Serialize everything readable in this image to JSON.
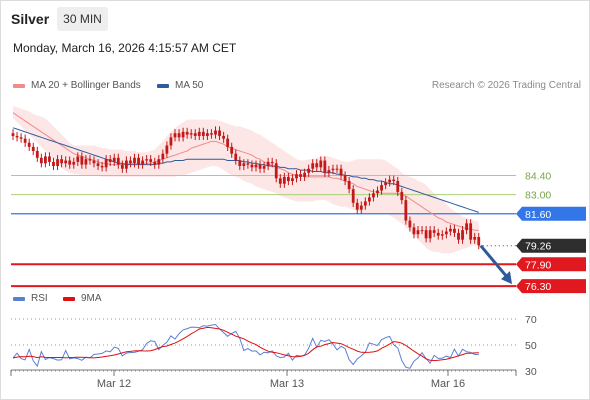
{
  "header": {
    "symbol": "Silver",
    "timeframe": "30 MIN",
    "datetime": "Monday, March 16, 2026 4:15:57 AM CET"
  },
  "legend": {
    "ma20": "MA 20 + Bollinger Bands",
    "ma50": "MA 50",
    "rsi": "RSI",
    "ma9": "9MA"
  },
  "credit": "Research © 2026 Trading Central",
  "colors": {
    "ma20": "#f08b8b",
    "ma50": "#2f5c9e",
    "band": "#fde6e6",
    "rsi": "#5a7fd6",
    "ma9": "#e01010",
    "pivot": "#3376e8",
    "support": "#e0181f",
    "resistance": "#a9cf7a",
    "candle": "#c41818",
    "arrow": "#2c5a9a"
  },
  "chart_data": [
    {
      "type": "candlestick",
      "x_ticks": [
        "Mar 12",
        "Mar 13",
        "Mar 16"
      ],
      "y_range": [
        75.65,
        90.3
      ],
      "levels": [
        {
          "label": "84.40",
          "value": 84.4,
          "kind": "resistance"
        },
        {
          "label": "83.00",
          "value": 83.0,
          "kind": "resistance"
        },
        {
          "label": "81.60",
          "value": 81.6,
          "kind": "pivot"
        },
        {
          "label": "79.26",
          "value": 79.26,
          "kind": "last"
        },
        {
          "label": "77.90",
          "value": 77.9,
          "kind": "support"
        },
        {
          "label": "76.30",
          "value": 76.3,
          "kind": "support"
        }
      ],
      "close": [
        87.3,
        87.2,
        87.1,
        86.8,
        86.5,
        86.2,
        85.7,
        85.3,
        85.8,
        85.4,
        85.1,
        85.6,
        85.3,
        85.5,
        85.2,
        85.4,
        85.8,
        85.2,
        85.6,
        85.5,
        85.3,
        85.1,
        85.0,
        85.6,
        85.4,
        85.7,
        85.2,
        84.9,
        85.5,
        85.3,
        85.7,
        85.2,
        85.5,
        85.6,
        85.4,
        85.2,
        85.6,
        86.0,
        86.6,
        87.2,
        87.5,
        87.2,
        87.6,
        87.4,
        87.5,
        87.3,
        87.6,
        87.3,
        87.5,
        87.4,
        87.7,
        87.3,
        87.1,
        86.5,
        86.0,
        85.5,
        85.1,
        85.3,
        85.2,
        85.0,
        85.2,
        84.9,
        85.1,
        85.4,
        85.3,
        84.2,
        83.8,
        84.3,
        84.0,
        84.2,
        84.5,
        84.3,
        84.6,
        84.9,
        85.3,
        85.0,
        85.5,
        84.6,
        84.8,
        84.9,
        84.9,
        84.4,
        84.0,
        83.4,
        82.4,
        81.9,
        82.2,
        82.5,
        82.8,
        83.1,
        83.3,
        83.7,
        83.9,
        84.1,
        84.0,
        83.2,
        82.6,
        81.1,
        80.6,
        80.1,
        80.4,
        80.4,
        79.8,
        80.4,
        80.2,
        80.0,
        80.1,
        80.3,
        80.5,
        80.2,
        79.7,
        80.4,
        80.9,
        79.7,
        79.9,
        79.3
      ],
      "ma20": [
        89.0,
        88.8,
        88.6,
        88.4,
        88.2,
        88.0,
        87.8,
        87.6,
        87.4,
        87.2,
        87.0,
        86.8,
        86.6,
        86.4,
        86.2,
        86.0,
        85.9,
        85.8,
        85.7,
        85.6,
        85.5,
        85.4,
        85.3,
        85.3,
        85.2,
        85.2,
        85.2,
        85.2,
        85.2,
        85.3,
        85.3,
        85.3,
        85.3,
        85.3,
        85.3,
        85.4,
        85.5,
        85.6,
        85.7,
        85.8,
        85.9,
        86.0,
        86.1,
        86.2,
        86.4,
        86.5,
        86.6,
        86.7,
        86.8,
        86.9,
        86.9,
        86.8,
        86.7,
        86.5,
        86.4,
        86.3,
        86.2,
        86.1,
        86.0,
        85.9,
        85.7,
        85.6,
        85.4,
        85.3,
        85.1,
        85.0,
        84.9,
        84.8,
        84.6,
        84.5,
        84.4,
        84.4,
        84.3,
        84.3,
        84.3,
        84.3,
        84.3,
        84.3,
        84.3,
        84.2,
        84.2,
        84.1,
        84.0,
        83.9,
        83.8,
        83.6,
        83.5,
        83.4,
        83.3,
        83.2,
        83.2,
        83.1,
        83.1,
        83.1,
        83.1,
        83.1,
        83.0,
        82.9,
        82.7,
        82.5,
        82.3,
        82.1,
        81.9,
        81.7,
        81.5,
        81.3,
        81.2,
        81.0,
        80.9,
        80.8,
        80.7,
        80.6,
        80.5,
        80.5,
        80.4,
        80.4
      ],
      "ma50": [
        87.9,
        87.8,
        87.7,
        87.6,
        87.5,
        87.4,
        87.3,
        87.2,
        87.1,
        87.0,
        86.9,
        86.8,
        86.7,
        86.6,
        86.5,
        86.4,
        86.3,
        86.2,
        86.1,
        86.0,
        85.9,
        85.8,
        85.7,
        85.6,
        85.5,
        85.4,
        85.3,
        85.3,
        85.2,
        85.2,
        85.2,
        85.2,
        85.2,
        85.2,
        85.2,
        85.2,
        85.3,
        85.3,
        85.4,
        85.4,
        85.5,
        85.5,
        85.5,
        85.6,
        85.6,
        85.6,
        85.6,
        85.6,
        85.6,
        85.6,
        85.6,
        85.6,
        85.6,
        85.5,
        85.5,
        85.5,
        85.5,
        85.4,
        85.4,
        85.3,
        85.3,
        85.2,
        85.2,
        85.1,
        85.1,
        85.1,
        85.0,
        85.0,
        84.9,
        84.9,
        84.9,
        84.8,
        84.8,
        84.8,
        84.7,
        84.7,
        84.7,
        84.6,
        84.6,
        84.6,
        84.5,
        84.5,
        84.4,
        84.4,
        84.3,
        84.3,
        84.2,
        84.2,
        84.1,
        84.1,
        84.0,
        84.0,
        83.9,
        83.8,
        83.8,
        83.7,
        83.6,
        83.5,
        83.4,
        83.3,
        83.2,
        83.1,
        83.0,
        82.9,
        82.8,
        82.7,
        82.6,
        82.5,
        82.4,
        82.3,
        82.2,
        82.1,
        82.0,
        81.9,
        81.8,
        81.7
      ],
      "band_upper": [
        89.5,
        89.4,
        89.3,
        89.2,
        89.1,
        88.9,
        88.8,
        88.7,
        88.6,
        88.3,
        88.0,
        87.7,
        87.4,
        87.1,
        86.8,
        86.6,
        86.6,
        86.6,
        86.6,
        86.6,
        86.6,
        86.5,
        86.4,
        86.4,
        86.3,
        86.3,
        86.3,
        86.3,
        86.2,
        86.2,
        86.2,
        86.1,
        86.1,
        86.1,
        86.2,
        86.3,
        86.6,
        86.9,
        87.3,
        87.6,
        87.9,
        88.1,
        88.3,
        88.5,
        88.5,
        88.5,
        88.5,
        88.5,
        88.5,
        88.5,
        88.5,
        88.4,
        88.3,
        88.2,
        88.1,
        88.0,
        88.0,
        87.9,
        87.8,
        87.7,
        87.5,
        87.4,
        87.2,
        87.0,
        86.8,
        86.6,
        86.4,
        86.2,
        86.0,
        85.8,
        85.6,
        85.5,
        85.5,
        85.6,
        85.6,
        85.7,
        85.8,
        85.8,
        85.8,
        85.7,
        85.6,
        85.5,
        85.4,
        85.4,
        85.5,
        85.6,
        85.6,
        85.6,
        85.6,
        85.6,
        85.6,
        85.6,
        85.5,
        85.3,
        85.1,
        84.9,
        84.6,
        84.4,
        84.3,
        84.2,
        84.0,
        83.9,
        83.7,
        83.4,
        83.1,
        82.8,
        82.6,
        82.3,
        82.0,
        81.8,
        81.6,
        81.4,
        81.3,
        81.2,
        81.1,
        81.0
      ],
      "band_lower": [
        88.6,
        88.3,
        88.0,
        87.7,
        87.4,
        87.1,
        86.8,
        86.5,
        86.2,
        85.9,
        85.6,
        85.3,
        85.0,
        84.7,
        84.6,
        84.5,
        84.5,
        84.4,
        84.4,
        84.4,
        84.4,
        84.4,
        84.3,
        84.3,
        84.3,
        84.3,
        84.3,
        84.3,
        84.3,
        84.3,
        84.3,
        84.3,
        84.3,
        84.3,
        84.3,
        84.3,
        84.3,
        84.3,
        84.3,
        84.3,
        84.3,
        84.4,
        84.4,
        84.5,
        84.6,
        84.7,
        84.8,
        84.9,
        85.0,
        85.1,
        85.1,
        85.0,
        84.8,
        84.6,
        84.4,
        84.3,
        84.2,
        84.0,
        83.9,
        83.8,
        83.6,
        83.5,
        83.4,
        83.3,
        83.2,
        83.1,
        82.9,
        82.8,
        82.7,
        82.6,
        82.5,
        82.5,
        82.5,
        82.5,
        82.5,
        82.6,
        82.6,
        82.6,
        82.5,
        82.3,
        82.2,
        82.1,
        82.1,
        82.0,
        81.9,
        81.8,
        81.7,
        81.6,
        81.6,
        81.6,
        81.6,
        81.6,
        81.6,
        81.5,
        81.3,
        81.1,
        80.9,
        80.6,
        80.3,
        80.0,
        79.7,
        79.4,
        79.1,
        78.9,
        78.8,
        78.8,
        78.7,
        78.7,
        78.7,
        78.8,
        78.9,
        79.0,
        79.1,
        79.2,
        79.3,
        79.3
      ],
      "projection": {
        "from": 79.26,
        "to": 76.3
      }
    },
    {
      "type": "line",
      "y_range": [
        20,
        80
      ],
      "y_ticks": [
        30,
        50,
        70
      ],
      "series": [
        {
          "name": "RSI",
          "values": [
            40.1,
            43.7,
            39.5,
            38.5,
            46.6,
            37.8,
            33.8,
            44.9,
            38.8,
            40.3,
            39.5,
            38.4,
            38.6,
            45.7,
            39.3,
            40.1,
            39.5,
            38.2,
            40.6,
            40.1,
            42.8,
            43.1,
            43.5,
            45.5,
            44.8,
            48.3,
            47.4,
            41.6,
            43.8,
            44.2,
            44.3,
            45.3,
            46.4,
            51.2,
            53.2,
            52.7,
            46.5,
            49.7,
            52.1,
            57.0,
            54.5,
            58.7,
            61.6,
            62.6,
            63.8,
            63.6,
            63.3,
            64.8,
            64.5,
            65.3,
            65.8,
            62.5,
            59.5,
            56.7,
            58.9,
            60.5,
            55.1,
            45.8,
            47.2,
            45.3,
            45.5,
            42.4,
            44.4,
            44.0,
            45.5,
            41.6,
            40.3,
            40.8,
            43.6,
            38.4,
            42.1,
            41.5,
            42.2,
            47.5,
            55.1,
            48.3,
            53.6,
            52.7,
            54.1,
            50.8,
            46.2,
            48.9,
            47.2,
            38.8,
            34.9,
            39.3,
            41.6,
            44.4,
            51.6,
            50.6,
            49.6,
            54.1,
            55.6,
            56.6,
            50.2,
            47.7,
            38.1,
            32.9,
            32.1,
            37.5,
            40.1,
            44.1,
            39.5,
            36.1,
            42.0,
            39.6,
            39.9,
            41.5,
            40.3,
            46.8,
            41.5,
            46.8,
            44.8,
            44.4,
            42.7,
            42.8
          ]
        },
        {
          "name": "9MA",
          "values": [
            40.0,
            40.7,
            41.1,
            40.9,
            41.3,
            41.1,
            40.3,
            40.9,
            40.5,
            40.4,
            40.4,
            40.4,
            40.4,
            40.1,
            40.4,
            40.5,
            40.6,
            40.6,
            40.4,
            40.2,
            40.1,
            40.4,
            40.8,
            41.2,
            41.7,
            42.3,
            43.1,
            43.9,
            44.8,
            45.1,
            45.5,
            45.6,
            45.5,
            45.4,
            45.6,
            46.5,
            47.8,
            48.8,
            49.2,
            50.4,
            51.5,
            53.0,
            54.8,
            56.6,
            58.6,
            60.4,
            62.3,
            62.9,
            63.5,
            63.2,
            62.8,
            62.3,
            61.3,
            59.8,
            58.4,
            56.8,
            55.8,
            54.8,
            53.0,
            51.6,
            50.3,
            48.3,
            46.7,
            45.2,
            44.4,
            44.1,
            43.2,
            42.4,
            41.7,
            41.1,
            40.9,
            41.2,
            42.0,
            43.6,
            46.4,
            48.5,
            49.1,
            50.3,
            51.1,
            51.9,
            51.5,
            51.0,
            49.7,
            48.0,
            46.8,
            45.3,
            44.4,
            44.3,
            44.4,
            44.7,
            45.5,
            47.5,
            49.0,
            50.7,
            52.6,
            52.2,
            51.4,
            49.7,
            47.5,
            45.3,
            43.2,
            41.5,
            39.3,
            38.2,
            38.0,
            38.2,
            38.7,
            39.1,
            39.9,
            40.7,
            41.7,
            42.6,
            43.6,
            43.7,
            43.9,
            44.0
          ]
        }
      ]
    }
  ]
}
